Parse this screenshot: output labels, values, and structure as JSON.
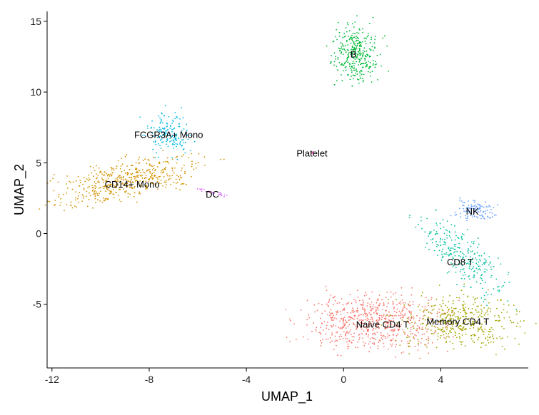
{
  "chart_data": {
    "type": "scatter",
    "title": "",
    "xlabel": "UMAP_1",
    "ylabel": "UMAP_2",
    "xlim": [
      -12.2,
      7.6
    ],
    "ylim": [
      -9.5,
      15.7
    ],
    "xticks": [
      -12,
      -8,
      -4,
      0,
      4
    ],
    "yticks": [
      -5,
      0,
      5,
      10,
      15
    ],
    "grid": false,
    "legend": "none",
    "clusters": [
      {
        "name": "Naive CD4 T",
        "color": "#F8766D",
        "center": [
          1.3,
          -6.3
        ],
        "label_at": [
          1.6,
          -6.4
        ],
        "spread": [
          1.4,
          1.0
        ],
        "n": 650
      },
      {
        "name": "Memory CD4 T",
        "color": "#A3A500",
        "center": [
          4.8,
          -6.2
        ],
        "label_at": [
          4.7,
          -6.2
        ],
        "spread": [
          1.2,
          0.9
        ],
        "n": 420
      },
      {
        "name": "CD14+ Mono",
        "color": "#D39200",
        "center": [
          -9.0,
          3.8
        ],
        "label_at": [
          -8.7,
          3.5
        ],
        "spread": [
          1.5,
          0.7
        ],
        "n": 480
      },
      {
        "name": "B",
        "color": "#00BA38",
        "center": [
          0.5,
          12.7
        ],
        "label_at": [
          0.4,
          12.7
        ],
        "spread": [
          0.45,
          1.0
        ],
        "n": 340
      },
      {
        "name": "CD8 T",
        "color": "#00C19F",
        "center": [
          4.9,
          -1.5
        ],
        "label_at": [
          4.8,
          -2.0
        ],
        "spread": [
          0.55,
          1.4
        ],
        "n": 270
      },
      {
        "name": "FCGR3A+ Mono",
        "color": "#00B9E3",
        "center": [
          -7.2,
          7.0
        ],
        "label_at": [
          -7.2,
          7.0
        ],
        "spread": [
          0.45,
          0.75
        ],
        "n": 160
      },
      {
        "name": "NK",
        "color": "#619CFF",
        "center": [
          5.4,
          1.7
        ],
        "label_at": [
          5.3,
          1.6
        ],
        "spread": [
          0.4,
          0.35
        ],
        "n": 110
      },
      {
        "name": "DC",
        "color": "#DB72FB",
        "center": [
          -5.4,
          2.9
        ],
        "label_at": [
          -5.4,
          2.8
        ],
        "spread": [
          0.35,
          0.12
        ],
        "n": 30
      },
      {
        "name": "Platelet",
        "color": "#FF61C3",
        "center": [
          -1.3,
          5.7
        ],
        "label_at": [
          -1.3,
          5.7
        ],
        "spread": [
          0.05,
          0.05
        ],
        "n": 4
      }
    ]
  }
}
